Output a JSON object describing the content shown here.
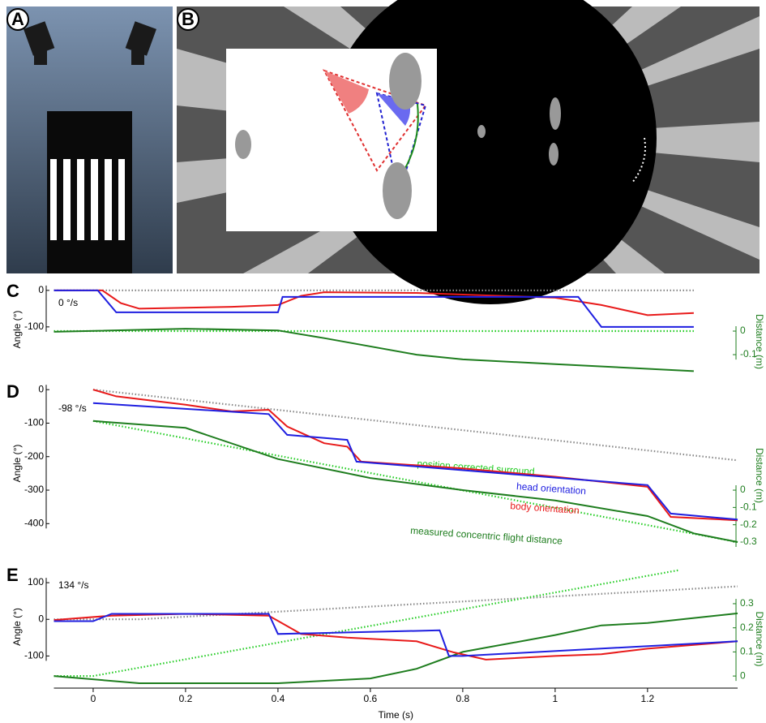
{
  "panel_labels": [
    "A",
    "B"
  ],
  "chart_data": [
    {
      "type": "line",
      "label": "C",
      "annotation": "0 °/s",
      "ylabel": "Angle (°)",
      "y2label": "Distance (m)",
      "xlim": [
        -0.085,
        1.395
      ],
      "ylim": [
        -227,
        13
      ],
      "yticks": [
        0,
        -100
      ],
      "y2lim": [
        -0.179,
        0.193
      ],
      "y2ticks": [
        0,
        -0.1
      ],
      "series": [
        {
          "color": "#888888",
          "dotted": true,
          "x": [
            -0.085,
            1.3
          ],
          "values": [
            0,
            0
          ]
        },
        {
          "color": "#22cc22",
          "dotted": true,
          "axis": "y2",
          "x": [
            -0.085,
            1.3
          ],
          "values": [
            0,
            0
          ]
        },
        {
          "color": "#1e7d1e",
          "axis": "y2",
          "x": [
            -0.085,
            0.2,
            0.4,
            0.5,
            0.7,
            0.8,
            1.0,
            1.3
          ],
          "values": [
            -0.003,
            0.01,
            0.003,
            -0.03,
            -0.1,
            -0.12,
            -0.14,
            -0.17
          ]
        },
        {
          "color": "#e81a1a",
          "x": [
            -0.085,
            0.02,
            0.06,
            0.1,
            0.3,
            0.4,
            0.45,
            0.5,
            0.7,
            1.0,
            1.1,
            1.2,
            1.3
          ],
          "values": [
            0,
            0,
            -35,
            -50,
            -45,
            -40,
            -15,
            -5,
            -7,
            -20,
            -40,
            -68,
            -62
          ]
        },
        {
          "color": "#1f1fe0",
          "x": [
            -0.085,
            0.01,
            0.05,
            0.4,
            0.41,
            1.05,
            1.1,
            1.3
          ],
          "values": [
            0,
            0,
            -60,
            -60,
            -18,
            -18,
            -100,
            -100
          ]
        }
      ]
    },
    {
      "type": "line",
      "label": "D",
      "annotation": "-98 °/s",
      "ylabel": "Angle (°)",
      "y2label": "Distance (m)",
      "xlim": [
        -0.085,
        1.395
      ],
      "ylim": [
        -455,
        15
      ],
      "yticks": [
        0,
        -100,
        -200,
        -300,
        -400
      ],
      "y2lim": [
        -0.3,
        0.61
      ],
      "y2ticks": [
        0,
        -0.1,
        -0.2,
        -0.3
      ],
      "series": [
        {
          "color": "#888888",
          "dotted": true,
          "x": [
            0,
            1.395
          ],
          "values": [
            0,
            -211
          ]
        },
        {
          "name": "position corrected surround",
          "color": "#22cc22",
          "dotted": true,
          "axis": "y2",
          "x": [
            0,
            1.395
          ],
          "values": [
            0.4,
            -0.3
          ]
        },
        {
          "name": "measured concentric flight distance",
          "color": "#1e7d1e",
          "axis": "y2",
          "x": [
            0,
            0.2,
            0.4,
            0.6,
            0.8,
            1.0,
            1.2,
            1.3,
            1.395
          ],
          "values": [
            0.4,
            0.36,
            0.18,
            0.07,
            0.0,
            -0.06,
            -0.15,
            -0.25,
            -0.3
          ]
        },
        {
          "name": "body orientation",
          "color": "#e81a1a",
          "x": [
            0,
            0.05,
            0.2,
            0.3,
            0.38,
            0.42,
            0.5,
            0.55,
            0.58,
            0.8,
            1.0,
            1.2,
            1.25,
            1.395
          ],
          "values": [
            0,
            -20,
            -45,
            -65,
            -60,
            -110,
            -160,
            -170,
            -215,
            -235,
            -260,
            -290,
            -380,
            -390
          ]
        },
        {
          "name": "head orientation",
          "color": "#1f1fe0",
          "x": [
            0,
            0.38,
            0.42,
            0.55,
            0.57,
            1.2,
            1.25,
            1.395
          ],
          "values": [
            -40,
            -73,
            -135,
            -150,
            -215,
            -285,
            -370,
            -388
          ]
        }
      ]
    },
    {
      "type": "line",
      "label": "E",
      "annotation": "134 °/s",
      "ylabel": "Angle (°)",
      "y2label": "Distance (m)",
      "xlabel": "Time (s)",
      "xlim": [
        -0.085,
        1.395
      ],
      "xticks": [
        0,
        0.2,
        0.4,
        0.6,
        0.8,
        1,
        1.2
      ],
      "ylim": [
        -181,
        140
      ],
      "yticks": [
        100,
        0,
        -100
      ],
      "y2lim": [
        -0.04,
        0.448
      ],
      "y2ticks": [
        0.3,
        0.2,
        0.1,
        0
      ],
      "series": [
        {
          "color": "#888888",
          "dotted": true,
          "x": [
            -0.085,
            0.1,
            1.395
          ],
          "values": [
            0,
            0,
            90
          ]
        },
        {
          "color": "#22cc22",
          "dotted": true,
          "axis": "y2",
          "x": [
            -0.085,
            0,
            1.27
          ],
          "values": [
            0,
            0,
            0.44
          ]
        },
        {
          "color": "#1e7d1e",
          "axis": "y2",
          "x": [
            -0.085,
            0.1,
            0.4,
            0.6,
            0.7,
            0.8,
            1.0,
            1.1,
            1.2,
            1.395
          ],
          "values": [
            0,
            -0.03,
            -0.03,
            -0.01,
            0.03,
            0.1,
            0.17,
            0.21,
            0.22,
            0.26
          ]
        },
        {
          "color": "#e81a1a",
          "x": [
            -0.085,
            0.04,
            0.2,
            0.38,
            0.45,
            0.55,
            0.7,
            0.78,
            0.85,
            1.0,
            1.1,
            1.2,
            1.395
          ],
          "values": [
            -2,
            10,
            15,
            10,
            -40,
            -50,
            -60,
            -90,
            -110,
            -100,
            -95,
            -80,
            -60
          ]
        },
        {
          "color": "#1f1fe0",
          "x": [
            -0.085,
            0,
            0.04,
            0.38,
            0.4,
            0.75,
            0.77,
            0.8,
            1.395
          ],
          "values": [
            -5,
            -5,
            15,
            15,
            -40,
            -30,
            -100,
            -100,
            -60
          ]
        }
      ]
    }
  ]
}
